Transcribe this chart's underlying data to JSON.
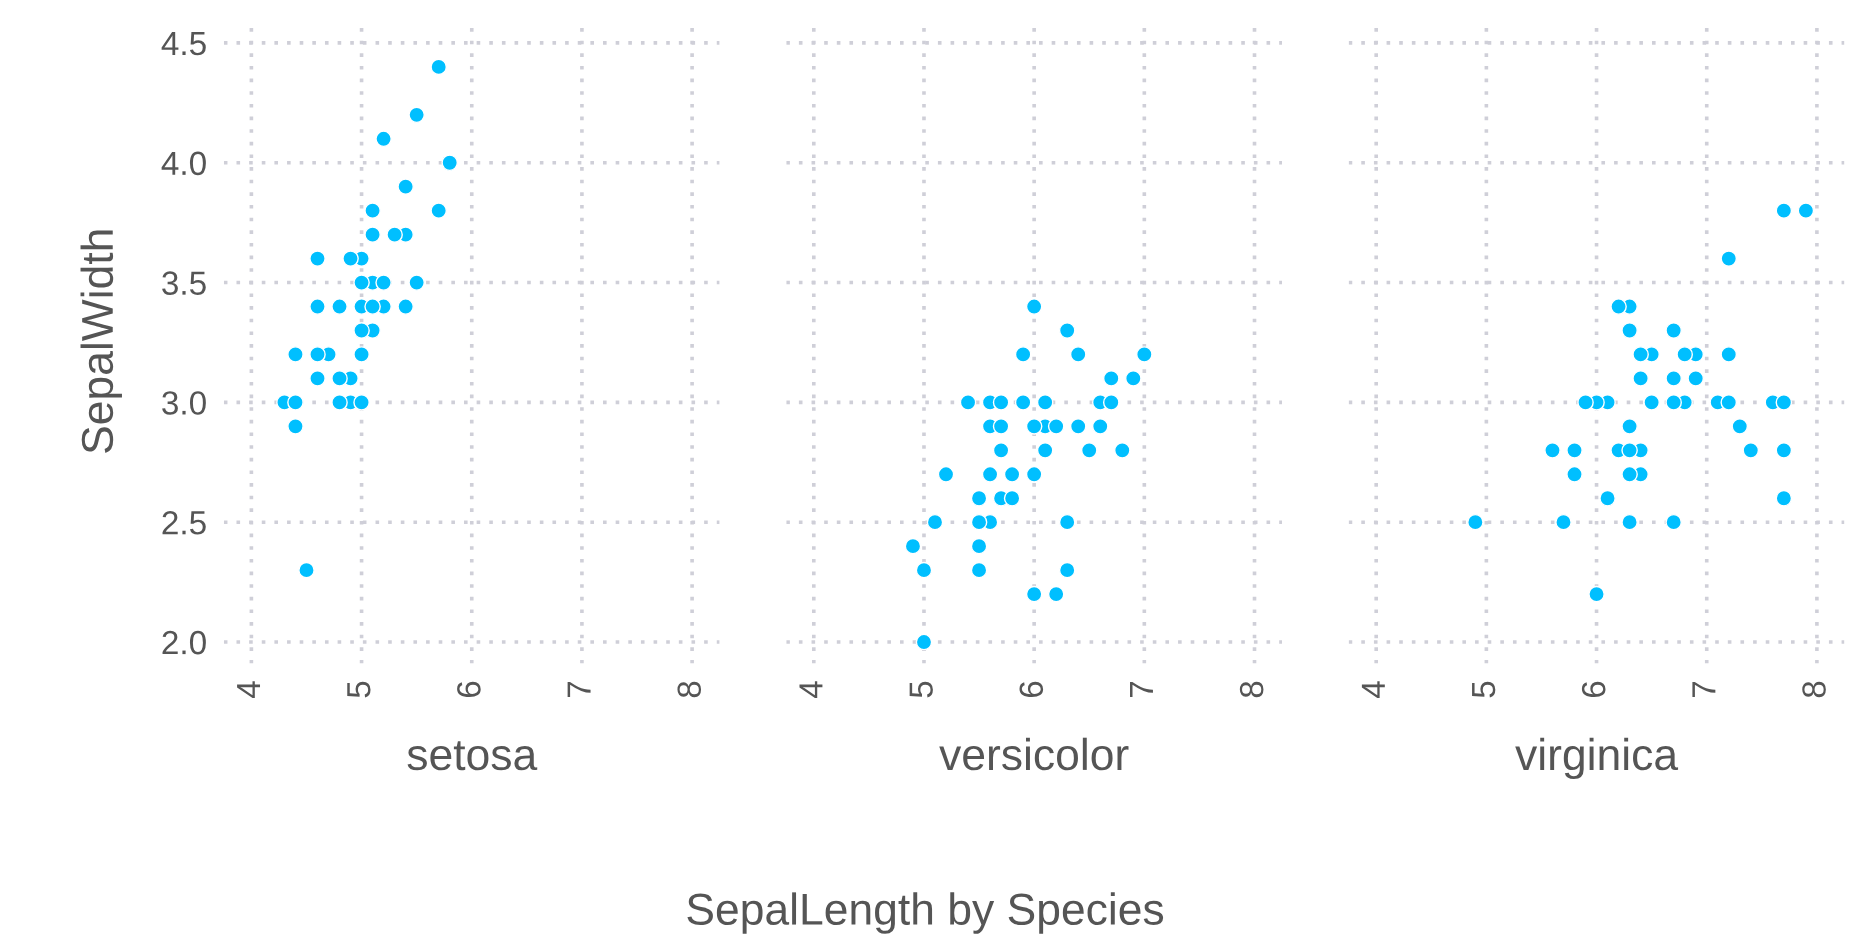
{
  "chart_data": [
    {
      "type": "scatter",
      "xlabel": "setosa",
      "ylabel": "SepalWidth",
      "annotations": [
        "SepalLength by Species"
      ],
      "marker": "circle",
      "grid": true,
      "xlim": [
        3.75,
        8.25
      ],
      "xticks": [
        4,
        5,
        6,
        7,
        8
      ],
      "ylim": [
        1.91,
        4.6
      ],
      "yticks": [
        {
          "value": 2,
          "label": "2.0"
        },
        2.5,
        {
          "value": 3,
          "label": "3.0"
        },
        3.5,
        {
          "value": 4,
          "label": "4.0"
        },
        4.5
      ],
      "series": [
        {
          "color": "#00bfff",
          "x": [
            5.1,
            4.9,
            4.7,
            4.6,
            5.0,
            5.4,
            4.6,
            5.0,
            4.4,
            4.9,
            5.4,
            4.8,
            4.8,
            4.3,
            5.8,
            5.7,
            5.7,
            5.1,
            5.4,
            5.1,
            4.6,
            5.1,
            5.0,
            5.2,
            5.2,
            4.8,
            5.2,
            5.5,
            5.0,
            5.5,
            4.9,
            4.4,
            5.1,
            5.0,
            4.5,
            4.4,
            4.6,
            5.3,
            5.0
          ],
          "values": [
            3.5,
            3.0,
            3.2,
            3.1,
            3.6,
            3.9,
            3.4,
            3.4,
            2.9,
            3.1,
            3.7,
            3.4,
            3.0,
            3.0,
            4.0,
            4.4,
            3.8,
            3.8,
            3.4,
            3.7,
            3.6,
            3.3,
            3.0,
            3.5,
            3.4,
            3.1,
            4.1,
            4.2,
            3.2,
            3.5,
            3.6,
            3.0,
            3.4,
            3.5,
            2.3,
            3.2,
            3.2,
            3.7,
            3.3
          ]
        }
      ]
    },
    {
      "type": "scatter",
      "xlabel": "versicolor",
      "marker": "circle",
      "grid": true,
      "tick_labels": "x",
      "xlim": [
        3.75,
        8.25
      ],
      "xticks": [
        4,
        5,
        6,
        7,
        8
      ],
      "ylim": [
        1.91,
        4.6
      ],
      "yticks": [
        2,
        2.5,
        3,
        3.5,
        4,
        4.5
      ],
      "series": [
        {
          "color": "#00bfff",
          "x": [
            7.0,
            6.4,
            6.9,
            5.5,
            6.5,
            5.7,
            6.3,
            4.9,
            6.6,
            5.2,
            5.0,
            5.9,
            6.0,
            6.1,
            5.6,
            6.7,
            5.6,
            5.8,
            6.2,
            5.6,
            5.9,
            6.1,
            6.3,
            6.4,
            6.6,
            6.8,
            6.7,
            6.0,
            5.7,
            5.5,
            6.0,
            5.4,
            6.0,
            6.3,
            5.5,
            5.5,
            6.1,
            5.8,
            5.0,
            5.6,
            5.7,
            5.7,
            6.2,
            5.1
          ],
          "values": [
            3.2,
            3.2,
            3.1,
            2.3,
            2.8,
            2.8,
            3.3,
            2.4,
            2.9,
            2.7,
            2.0,
            3.0,
            2.2,
            2.9,
            2.9,
            3.1,
            3.0,
            2.7,
            2.2,
            2.5,
            3.2,
            2.8,
            2.5,
            2.9,
            3.0,
            2.8,
            3.0,
            2.9,
            2.6,
            2.4,
            2.7,
            3.0,
            3.4,
            2.3,
            2.5,
            2.6,
            3.0,
            2.6,
            2.3,
            2.7,
            3.0,
            2.9,
            2.9,
            2.5
          ]
        }
      ]
    },
    {
      "type": "scatter",
      "xlabel": "virginica",
      "marker": "circle",
      "grid": true,
      "tick_labels": "x",
      "xlim": [
        3.75,
        8.25
      ],
      "xticks": [
        4,
        5,
        6,
        7,
        8
      ],
      "ylim": [
        1.91,
        4.6
      ],
      "yticks": [
        2,
        2.5,
        3,
        3.5,
        4,
        4.5
      ],
      "series": [
        {
          "color": "#00bfff",
          "x": [
            6.3,
            5.8,
            7.1,
            6.3,
            6.5,
            7.6,
            4.9,
            7.3,
            6.7,
            7.2,
            6.5,
            6.4,
            6.8,
            5.7,
            5.8,
            6.4,
            7.7,
            7.7,
            6.0,
            6.9,
            5.6,
            7.7,
            6.3,
            6.7,
            7.2,
            6.2,
            6.1,
            6.4,
            7.2,
            7.4,
            7.9,
            6.3,
            6.1,
            7.7,
            6.3,
            6.4,
            6.0,
            6.9,
            6.7,
            6.8,
            6.7,
            6.3,
            6.2,
            5.9
          ],
          "values": [
            3.3,
            2.7,
            3.0,
            2.9,
            3.0,
            3.0,
            2.5,
            2.9,
            2.5,
            3.6,
            3.2,
            2.7,
            3.0,
            2.5,
            2.8,
            3.2,
            3.8,
            2.6,
            2.2,
            3.2,
            2.8,
            2.8,
            2.7,
            3.3,
            3.2,
            2.8,
            3.0,
            2.8,
            3.0,
            2.8,
            3.8,
            2.8,
            2.6,
            3.0,
            3.4,
            3.1,
            3.0,
            3.1,
            3.1,
            3.2,
            3.0,
            2.5,
            3.4,
            3.0
          ]
        }
      ]
    }
  ]
}
